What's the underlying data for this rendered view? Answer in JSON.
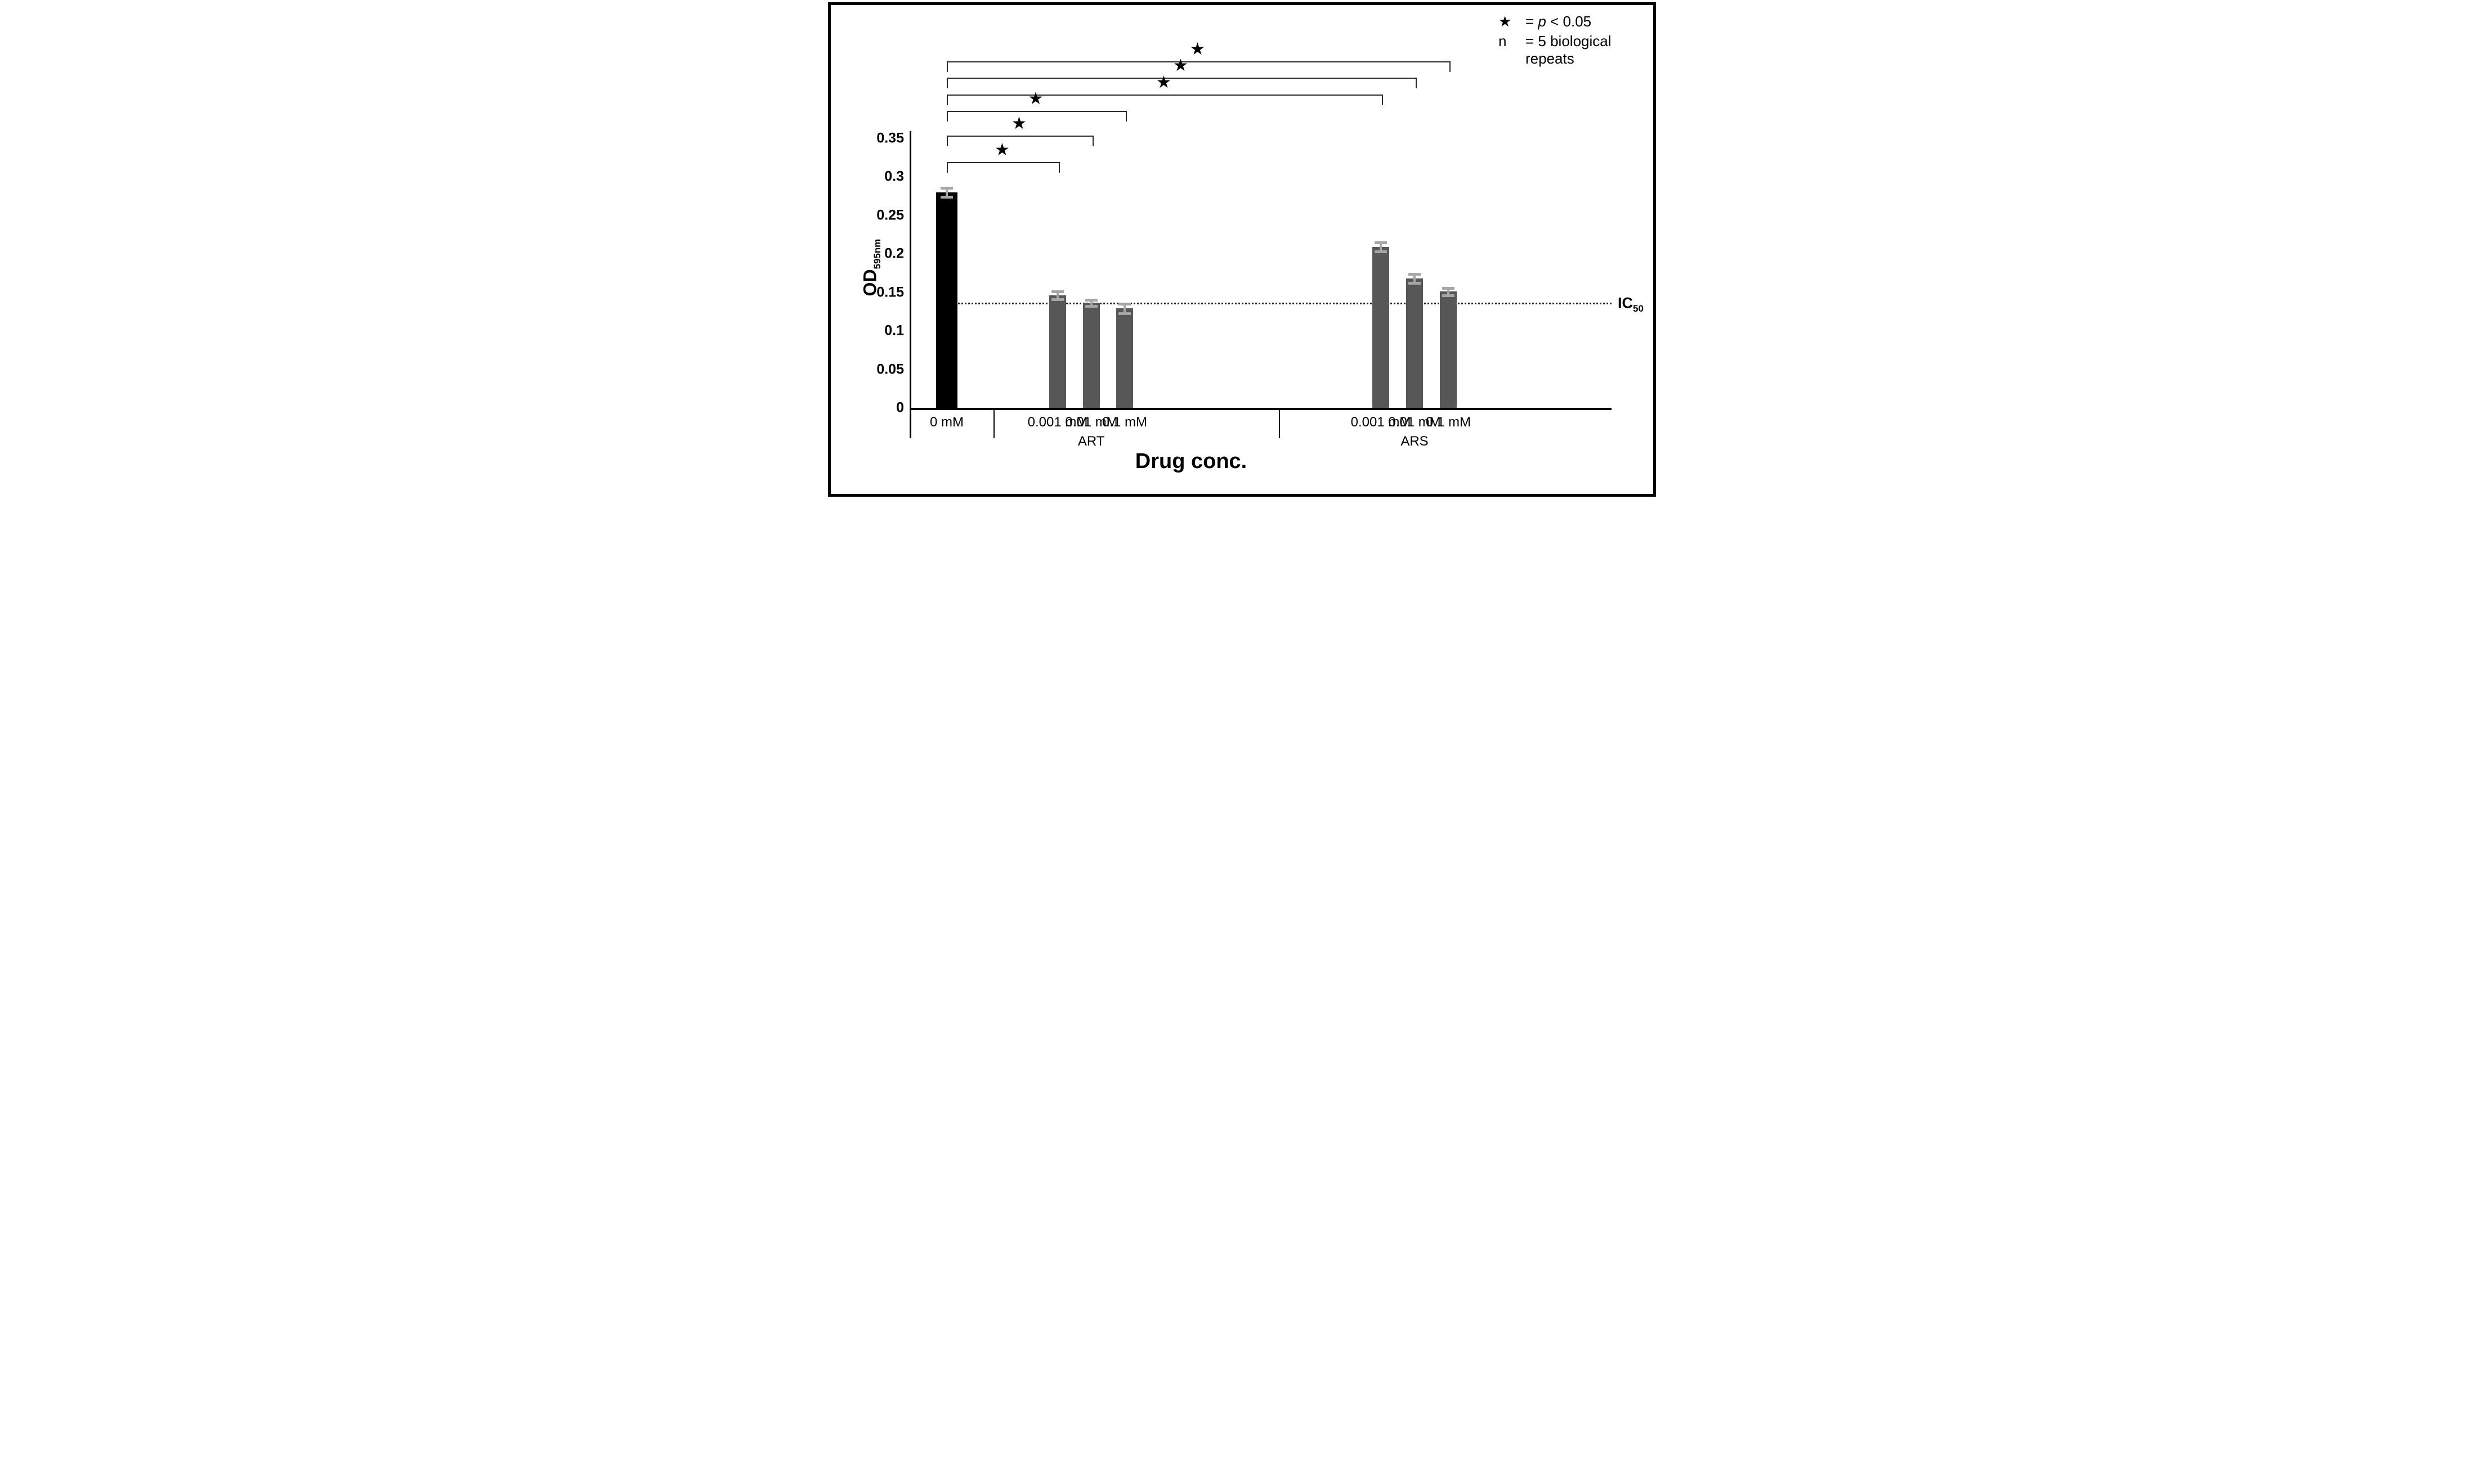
{
  "chart_data": {
    "type": "bar",
    "title": "",
    "ylabel": "OD",
    "ylabel_subscript": "595nm",
    "xlabel": "Drug conc.",
    "ylim": [
      0,
      0.35
    ],
    "ytick_labels": [
      "0.35",
      "0.3",
      "0.25",
      "0.2",
      "0.15",
      "0.1",
      "0.05",
      "0"
    ],
    "grid": false,
    "bar_color": "#575757",
    "control_bar_color": "#000000",
    "error_bar_color": "#a6a6a6",
    "reference_line": {
      "value": 0.136,
      "label": "IC",
      "label_subscript": "50"
    },
    "groups": [
      {
        "name": "",
        "bars": [
          {
            "label": "0 mM",
            "value": 0.28,
            "error": 0.006,
            "color": "#000000"
          }
        ]
      },
      {
        "name": "ART",
        "bars": [
          {
            "label": "0.001 mM",
            "value": 0.146,
            "error": 0.005,
            "color": "#575757"
          },
          {
            "label": "0.01 mM",
            "value": 0.136,
            "error": 0.004,
            "color": "#575757"
          },
          {
            "label": "0.1 mM",
            "value": 0.129,
            "error": 0.006,
            "color": "#575757"
          }
        ]
      },
      {
        "name": "ARS",
        "bars": [
          {
            "label": "0.001 mM",
            "value": 0.209,
            "error": 0.006,
            "color": "#575757"
          },
          {
            "label": "0.01 mM",
            "value": 0.168,
            "error": 0.006,
            "color": "#575757"
          },
          {
            "label": "0.1 mM",
            "value": 0.151,
            "error": 0.005,
            "color": "#575757"
          }
        ]
      }
    ],
    "significance": [
      {
        "id": "ars-0.1",
        "comparison": "0 mM vs ARS 0.1 mM",
        "target_group": 2,
        "target_bar": 2,
        "symbol": "★"
      },
      {
        "id": "ars-0.01",
        "comparison": "0 mM vs ARS 0.01 mM",
        "target_group": 2,
        "target_bar": 1,
        "symbol": "★"
      },
      {
        "id": "ars-0.001",
        "comparison": "0 mM vs ARS 0.001 mM",
        "target_group": 2,
        "target_bar": 0,
        "symbol": "★"
      },
      {
        "id": "art-0.1",
        "comparison": "0 mM vs ART 0.1 mM",
        "target_group": 1,
        "target_bar": 2,
        "symbol": "★"
      },
      {
        "id": "art-0.01",
        "comparison": "0 mM vs ART 0.01 mM",
        "target_group": 1,
        "target_bar": 1,
        "symbol": "★"
      },
      {
        "id": "art-0.001",
        "comparison": "0 mM vs ART 0.001 mM",
        "target_group": 1,
        "target_bar": 0,
        "symbol": "★"
      }
    ],
    "legend": {
      "star_symbol": "★",
      "star_eq": "=",
      "star_p": "p",
      "star_rest": "< 0.05",
      "n_symbol": "n",
      "n_text": "= 5 biological repeats"
    }
  }
}
